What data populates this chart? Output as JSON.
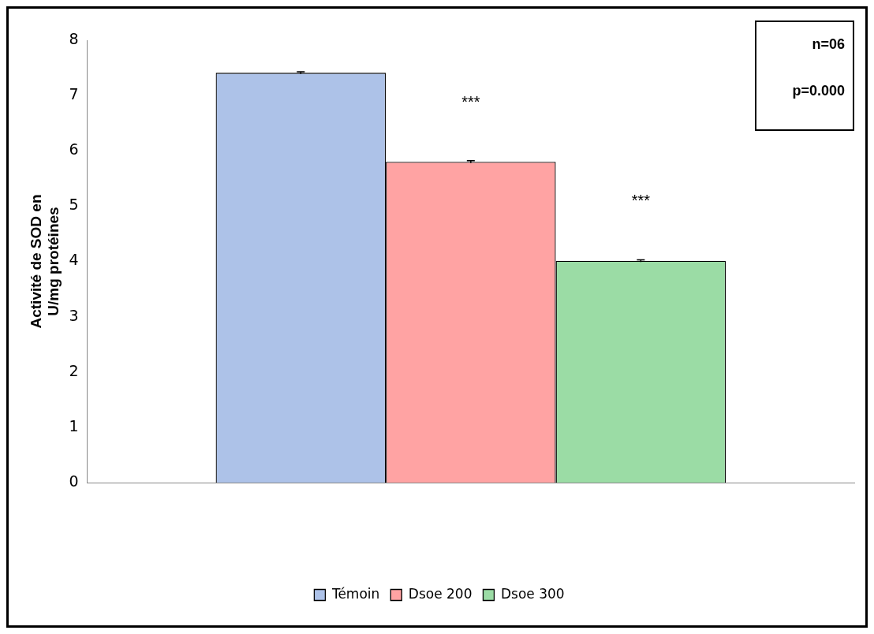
{
  "chart_data": {
    "type": "bar",
    "ylabel": "Activité de SOD en\nU/mg protéines",
    "categories": [
      null
    ],
    "series": [
      {
        "name": "Témoin",
        "color": "#adc2e8",
        "values": [
          7.41
        ],
        "errors": [
          0.02
        ]
      },
      {
        "name": "Dsoe 200",
        "color": "#ffa3a3",
        "values": [
          5.8
        ],
        "errors": [
          0.02
        ]
      },
      {
        "name": "Dsoe 300",
        "color": "#9bdca5",
        "values": [
          4.01
        ],
        "errors": [
          0.02
        ]
      }
    ],
    "ylim": [
      0,
      8
    ],
    "yticks": [
      0,
      1,
      2,
      3,
      4,
      5,
      6,
      7,
      8
    ],
    "grid": false,
    "legend": "bottom",
    "annotations": [
      "***",
      "***",
      "n=06",
      "p=0.000"
    ]
  }
}
